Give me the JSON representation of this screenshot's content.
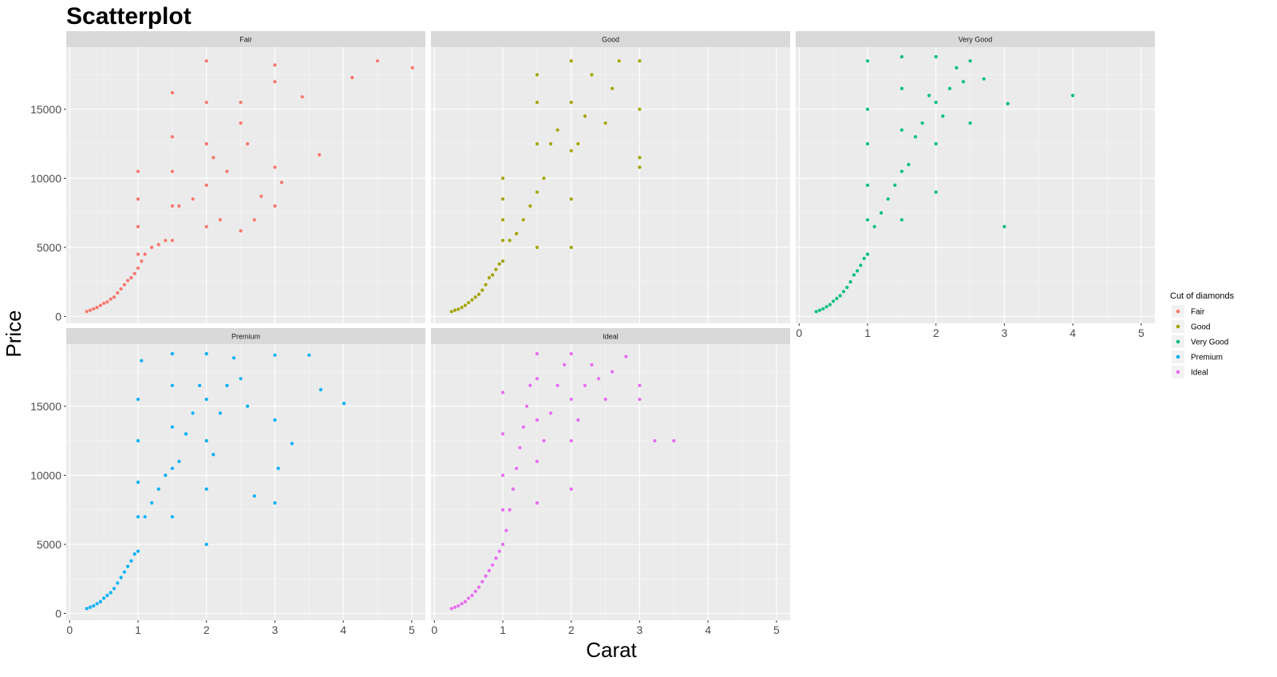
{
  "chart_data": {
    "type": "scatter",
    "title": "Scatterplot",
    "xlabel": "Carat",
    "ylabel": "Price",
    "xlim": [
      -0.05,
      5.2
    ],
    "ylim": [
      -500,
      19500
    ],
    "x_ticks": [
      0,
      1,
      2,
      3,
      4,
      5
    ],
    "y_ticks": [
      0,
      5000,
      10000,
      15000
    ],
    "grid": true,
    "legend": {
      "title": "Cut of diamonds",
      "placement": "right",
      "entries": [
        "Fair",
        "Good",
        "Very Good",
        "Premium",
        "Ideal"
      ]
    },
    "series": [
      {
        "name": "Fair",
        "color": "#F8766D",
        "points": [
          [
            0.25,
            360
          ],
          [
            0.3,
            450
          ],
          [
            0.35,
            550
          ],
          [
            0.4,
            650
          ],
          [
            0.45,
            800
          ],
          [
            0.5,
            950
          ],
          [
            0.55,
            1050
          ],
          [
            0.6,
            1250
          ],
          [
            0.65,
            1400
          ],
          [
            0.7,
            1700
          ],
          [
            0.75,
            2000
          ],
          [
            0.8,
            2300
          ],
          [
            0.85,
            2600
          ],
          [
            0.9,
            2800
          ],
          [
            0.95,
            3100
          ],
          [
            1.0,
            3500
          ],
          [
            1.0,
            4500
          ],
          [
            1.0,
            6500
          ],
          [
            1.0,
            8500
          ],
          [
            1.0,
            10500
          ],
          [
            1.05,
            4000
          ],
          [
            1.1,
            4500
          ],
          [
            1.2,
            5000
          ],
          [
            1.3,
            5200
          ],
          [
            1.4,
            5500
          ],
          [
            1.5,
            5500
          ],
          [
            1.5,
            8000
          ],
          [
            1.5,
            10500
          ],
          [
            1.5,
            13000
          ],
          [
            1.5,
            16200
          ],
          [
            1.6,
            8000
          ],
          [
            1.8,
            8500
          ],
          [
            2.0,
            6500
          ],
          [
            2.0,
            9500
          ],
          [
            2.0,
            12500
          ],
          [
            2.0,
            15500
          ],
          [
            2.0,
            18500
          ],
          [
            2.1,
            11500
          ],
          [
            2.2,
            7000
          ],
          [
            2.3,
            10500
          ],
          [
            2.5,
            14000
          ],
          [
            2.5,
            15500
          ],
          [
            2.5,
            6200
          ],
          [
            2.6,
            12500
          ],
          [
            2.7,
            7000
          ],
          [
            2.8,
            8700
          ],
          [
            3.0,
            18200
          ],
          [
            3.0,
            17000
          ],
          [
            3.0,
            10800
          ],
          [
            3.0,
            8000
          ],
          [
            3.1,
            9700
          ],
          [
            3.4,
            15900
          ],
          [
            3.65,
            11700
          ],
          [
            4.13,
            17300
          ],
          [
            4.5,
            18500
          ],
          [
            5.01,
            18000
          ]
        ]
      },
      {
        "name": "Good",
        "color": "#A3A500",
        "points": [
          [
            0.25,
            350
          ],
          [
            0.3,
            450
          ],
          [
            0.35,
            520
          ],
          [
            0.4,
            650
          ],
          [
            0.45,
            800
          ],
          [
            0.5,
            1000
          ],
          [
            0.55,
            1200
          ],
          [
            0.6,
            1400
          ],
          [
            0.65,
            1600
          ],
          [
            0.7,
            1900
          ],
          [
            0.75,
            2300
          ],
          [
            0.8,
            2800
          ],
          [
            0.85,
            3000
          ],
          [
            0.9,
            3400
          ],
          [
            0.95,
            3800
          ],
          [
            1.0,
            4000
          ],
          [
            1.0,
            5500
          ],
          [
            1.0,
            7000
          ],
          [
            1.0,
            8500
          ],
          [
            1.0,
            10000
          ],
          [
            1.1,
            5500
          ],
          [
            1.2,
            6000
          ],
          [
            1.3,
            7000
          ],
          [
            1.4,
            8000
          ],
          [
            1.5,
            5000
          ],
          [
            1.5,
            9000
          ],
          [
            1.5,
            12500
          ],
          [
            1.5,
            15500
          ],
          [
            1.5,
            17500
          ],
          [
            1.6,
            10000
          ],
          [
            1.7,
            12500
          ],
          [
            1.8,
            13500
          ],
          [
            2.0,
            5000
          ],
          [
            2.0,
            8500
          ],
          [
            2.0,
            12000
          ],
          [
            2.0,
            15500
          ],
          [
            2.0,
            18500
          ],
          [
            2.1,
            12500
          ],
          [
            2.2,
            14500
          ],
          [
            2.3,
            17500
          ],
          [
            2.5,
            14000
          ],
          [
            2.6,
            16500
          ],
          [
            2.7,
            18500
          ],
          [
            3.0,
            18500
          ],
          [
            3.0,
            15000
          ],
          [
            3.0,
            11500
          ],
          [
            3.0,
            10800
          ]
        ]
      },
      {
        "name": "Very Good",
        "color": "#00BF7D",
        "points": [
          [
            0.25,
            350
          ],
          [
            0.3,
            450
          ],
          [
            0.35,
            550
          ],
          [
            0.4,
            700
          ],
          [
            0.45,
            850
          ],
          [
            0.5,
            1100
          ],
          [
            0.55,
            1300
          ],
          [
            0.6,
            1500
          ],
          [
            0.65,
            1800
          ],
          [
            0.7,
            2100
          ],
          [
            0.75,
            2500
          ],
          [
            0.8,
            3000
          ],
          [
            0.85,
            3300
          ],
          [
            0.9,
            3700
          ],
          [
            0.95,
            4200
          ],
          [
            1.0,
            4500
          ],
          [
            1.0,
            7000
          ],
          [
            1.0,
            9500
          ],
          [
            1.0,
            12500
          ],
          [
            1.0,
            15000
          ],
          [
            1.0,
            18500
          ],
          [
            1.1,
            6500
          ],
          [
            1.2,
            7500
          ],
          [
            1.3,
            8500
          ],
          [
            1.4,
            9500
          ],
          [
            1.5,
            7000
          ],
          [
            1.5,
            10500
          ],
          [
            1.5,
            13500
          ],
          [
            1.5,
            16500
          ],
          [
            1.5,
            18800
          ],
          [
            1.6,
            11000
          ],
          [
            1.7,
            13000
          ],
          [
            1.8,
            14000
          ],
          [
            1.9,
            16000
          ],
          [
            2.0,
            9000
          ],
          [
            2.0,
            12500
          ],
          [
            2.0,
            15500
          ],
          [
            2.0,
            18800
          ],
          [
            2.1,
            14500
          ],
          [
            2.2,
            16500
          ],
          [
            2.3,
            18000
          ],
          [
            2.4,
            17000
          ],
          [
            2.5,
            14000
          ],
          [
            2.5,
            18500
          ],
          [
            2.7,
            17200
          ],
          [
            3.05,
            15400
          ],
          [
            3.0,
            6500
          ],
          [
            4.0,
            16000
          ]
        ]
      },
      {
        "name": "Premium",
        "color": "#00B0F6",
        "points": [
          [
            0.25,
            350
          ],
          [
            0.3,
            450
          ],
          [
            0.35,
            550
          ],
          [
            0.4,
            700
          ],
          [
            0.45,
            850
          ],
          [
            0.5,
            1100
          ],
          [
            0.55,
            1300
          ],
          [
            0.6,
            1500
          ],
          [
            0.65,
            1800
          ],
          [
            0.7,
            2200
          ],
          [
            0.75,
            2600
          ],
          [
            0.8,
            3000
          ],
          [
            0.85,
            3400
          ],
          [
            0.9,
            3800
          ],
          [
            0.95,
            4300
          ],
          [
            1.0,
            4500
          ],
          [
            1.0,
            7000
          ],
          [
            1.0,
            9500
          ],
          [
            1.0,
            12500
          ],
          [
            1.0,
            15500
          ],
          [
            1.05,
            18300
          ],
          [
            1.1,
            7000
          ],
          [
            1.2,
            8000
          ],
          [
            1.3,
            9000
          ],
          [
            1.4,
            10000
          ],
          [
            1.5,
            7000
          ],
          [
            1.5,
            10500
          ],
          [
            1.5,
            13500
          ],
          [
            1.5,
            16500
          ],
          [
            1.5,
            18800
          ],
          [
            1.6,
            11000
          ],
          [
            1.7,
            13000
          ],
          [
            1.8,
            14500
          ],
          [
            1.9,
            16500
          ],
          [
            2.0,
            5000
          ],
          [
            2.0,
            9000
          ],
          [
            2.0,
            12500
          ],
          [
            2.0,
            15500
          ],
          [
            2.0,
            18800
          ],
          [
            2.1,
            11500
          ],
          [
            2.2,
            14500
          ],
          [
            2.3,
            16500
          ],
          [
            2.4,
            18500
          ],
          [
            2.5,
            17000
          ],
          [
            2.6,
            15000
          ],
          [
            2.7,
            8500
          ],
          [
            3.0,
            18700
          ],
          [
            3.0,
            14000
          ],
          [
            3.0,
            8000
          ],
          [
            3.05,
            10500
          ],
          [
            3.25,
            12300
          ],
          [
            3.5,
            18700
          ],
          [
            3.67,
            16200
          ],
          [
            4.01,
            15200
          ]
        ]
      },
      {
        "name": "Ideal",
        "color": "#E76BF3",
        "points": [
          [
            0.25,
            350
          ],
          [
            0.3,
            450
          ],
          [
            0.35,
            550
          ],
          [
            0.4,
            700
          ],
          [
            0.45,
            850
          ],
          [
            0.5,
            1100
          ],
          [
            0.55,
            1300
          ],
          [
            0.6,
            1600
          ],
          [
            0.65,
            1900
          ],
          [
            0.7,
            2300
          ],
          [
            0.75,
            2700
          ],
          [
            0.8,
            3100
          ],
          [
            0.85,
            3500
          ],
          [
            0.9,
            4000
          ],
          [
            0.95,
            4500
          ],
          [
            1.0,
            5000
          ],
          [
            1.0,
            7500
          ],
          [
            1.0,
            10000
          ],
          [
            1.0,
            13000
          ],
          [
            1.0,
            16000
          ],
          [
            1.05,
            6000
          ],
          [
            1.1,
            7500
          ],
          [
            1.15,
            9000
          ],
          [
            1.2,
            10500
          ],
          [
            1.25,
            12000
          ],
          [
            1.3,
            13500
          ],
          [
            1.35,
            15000
          ],
          [
            1.4,
            16500
          ],
          [
            1.5,
            8000
          ],
          [
            1.5,
            11000
          ],
          [
            1.5,
            14000
          ],
          [
            1.5,
            17000
          ],
          [
            1.5,
            18800
          ],
          [
            1.6,
            12500
          ],
          [
            1.7,
            14500
          ],
          [
            1.8,
            16500
          ],
          [
            1.9,
            18000
          ],
          [
            2.0,
            9000
          ],
          [
            2.0,
            12500
          ],
          [
            2.0,
            15500
          ],
          [
            2.0,
            18800
          ],
          [
            2.1,
            14000
          ],
          [
            2.2,
            16500
          ],
          [
            2.3,
            18000
          ],
          [
            2.4,
            17000
          ],
          [
            2.5,
            15500
          ],
          [
            2.6,
            17500
          ],
          [
            2.8,
            18600
          ],
          [
            3.0,
            16500
          ],
          [
            3.0,
            15500
          ],
          [
            3.22,
            12500
          ],
          [
            3.5,
            12500
          ]
        ]
      }
    ]
  }
}
